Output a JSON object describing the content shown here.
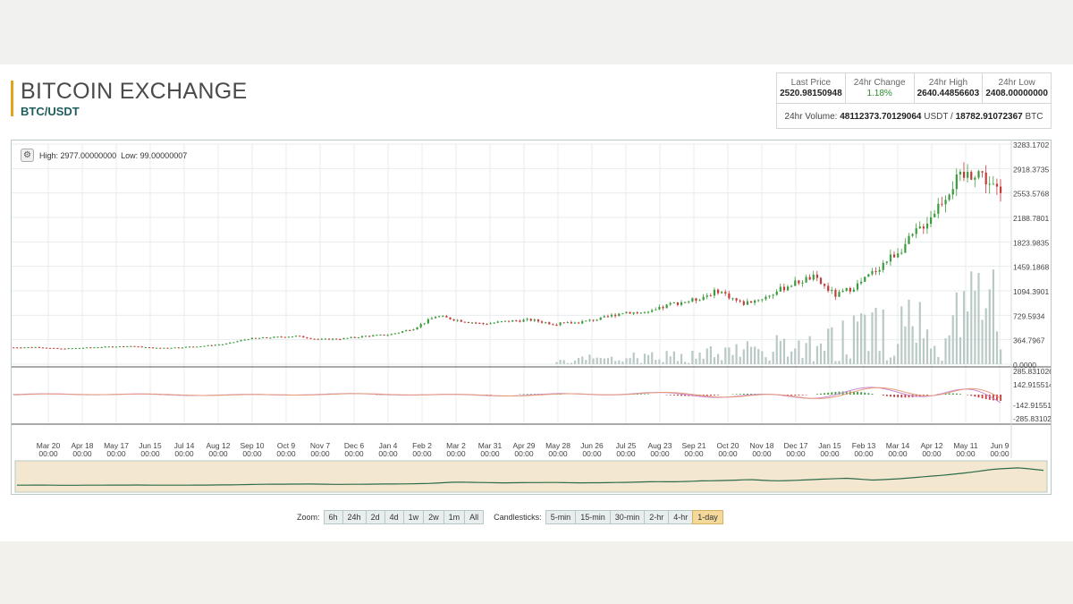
{
  "header": {
    "title": "BITCOIN EXCHANGE",
    "pair": "BTC/USDT"
  },
  "stats": {
    "last_price_label": "Last Price",
    "last_price": "2520.98150948",
    "change_label": "24hr Change",
    "change": "1.18%",
    "high_label": "24hr High",
    "high": "2640.44856603",
    "low_label": "24hr Low",
    "low": "2408.00000000",
    "volume_label": "24hr Volume:",
    "volume_value": "48112373.70129064",
    "volume_unit1": "USDT /",
    "volume_btc": "18782.91072367",
    "volume_unit2": "BTC"
  },
  "chart_info": {
    "high_label": "High:",
    "high": "2977.00000000",
    "low_label": "Low:",
    "low": "99.00000007"
  },
  "controls": {
    "zoom_label": "Zoom:",
    "zoom": [
      "6h",
      "24h",
      "2d",
      "4d",
      "1w",
      "2w",
      "1m",
      "All"
    ],
    "candle_label": "Candlesticks:",
    "candles": [
      "5-min",
      "15-min",
      "30-min",
      "2-hr",
      "4-hr",
      "1-day"
    ],
    "active_candle": "1-day"
  },
  "colors": {
    "up": "#3c9b3c",
    "down": "#c43b3b",
    "volume": "#b9c9c6",
    "accent": "#e0a31c",
    "navigator_bg": "#f3e8cf"
  },
  "chart_data": {
    "type": "candlestick",
    "price_axis": [
      "3283.1702",
      "2918.3735",
      "2553.5768",
      "2188.7801",
      "1823.9835",
      "1459.1868",
      "1094.3901",
      "729.5934",
      "364.7967",
      "0.0000"
    ],
    "ylim": [
      0,
      3283.1702
    ],
    "macd_axis": [
      "285.831026",
      "142.915514",
      "-142.91551",
      "-285.83102"
    ],
    "x_labels": [
      "Mar 20",
      "Apr 18",
      "May 17",
      "Jun 15",
      "Jul 14",
      "Aug 12",
      "Sep 10",
      "Oct 9",
      "Nov 7",
      "Dec 6",
      "Jan 4",
      "Feb 2",
      "Mar 2",
      "Mar 31",
      "Apr 29",
      "May 28",
      "Jun 26",
      "Jul 25",
      "Aug 23",
      "Sep 21",
      "Oct 20",
      "Nov 18",
      "Dec 17",
      "Jan 15",
      "Feb 13",
      "Mar 14",
      "Apr 12",
      "May 11",
      "Jun 9"
    ],
    "x_time": "00:00",
    "price_path": [
      250,
      255,
      230,
      245,
      260,
      270,
      240,
      250,
      270,
      300,
      380,
      400,
      420,
      370,
      380,
      420,
      440,
      530,
      720,
      650,
      600,
      640,
      660,
      600,
      620,
      680,
      780,
      760,
      900,
      960,
      1100,
      900,
      1000,
      1180,
      1300,
      1020,
      1200,
      1500,
      1800,
      2200,
      2700,
      2900,
      2520
    ]
  }
}
